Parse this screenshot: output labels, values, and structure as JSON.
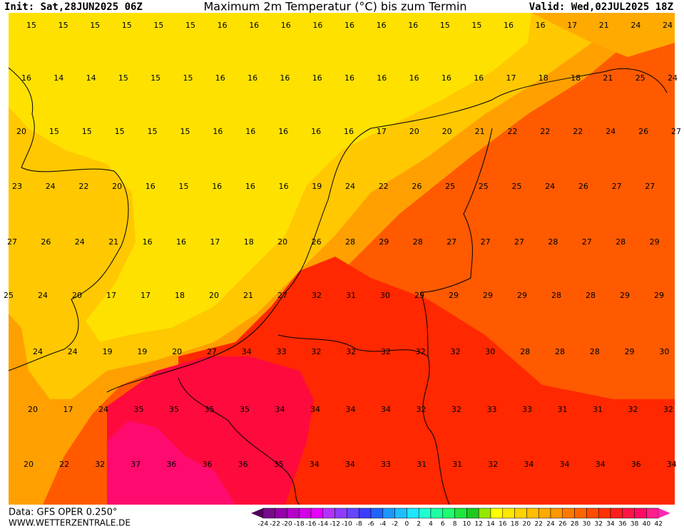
{
  "header": {
    "init": "Init: Sat,28JUN2025 06Z",
    "title": "Maximum 2m Temperatur (°C) bis zum Termin",
    "valid": "Valid: Wed,02JUL2025 18Z"
  },
  "map": {
    "rows": [
      [
        15,
        15,
        15,
        15,
        15,
        15,
        16,
        16,
        16,
        16,
        16,
        16,
        16,
        15,
        15,
        16,
        16,
        17,
        21,
        24,
        24
      ],
      [
        16,
        14,
        14,
        15,
        15,
        15,
        16,
        16,
        16,
        16,
        16,
        16,
        16,
        16,
        16,
        17,
        18,
        18,
        21,
        25,
        24
      ],
      [
        20,
        15,
        15,
        15,
        15,
        15,
        16,
        16,
        16,
        16,
        16,
        17,
        20,
        20,
        21,
        22,
        22,
        22,
        24,
        26,
        27
      ],
      [
        23,
        24,
        22,
        20,
        16,
        15,
        16,
        16,
        16,
        19,
        24,
        22,
        26,
        25,
        25,
        25,
        24,
        26,
        27,
        27
      ],
      [
        27,
        26,
        24,
        21,
        16,
        16,
        17,
        18,
        20,
        26,
        28,
        29,
        28,
        27,
        27,
        27,
        28,
        27,
        28,
        29
      ],
      [
        25,
        24,
        20,
        17,
        17,
        18,
        20,
        21,
        27,
        32,
        31,
        30,
        29,
        29,
        29,
        29,
        28,
        28,
        29,
        29
      ],
      [
        24,
        24,
        19,
        19,
        20,
        27,
        34,
        33,
        32,
        32,
        32,
        32,
        32,
        30,
        28,
        28,
        28,
        29,
        30
      ],
      [
        20,
        17,
        24,
        35,
        35,
        35,
        35,
        34,
        34,
        34,
        34,
        32,
        32,
        33,
        33,
        31,
        31,
        32,
        32
      ],
      [
        20,
        22,
        32,
        37,
        36,
        36,
        36,
        35,
        34,
        34,
        33,
        31,
        31,
        32,
        34,
        34,
        34,
        36,
        34
      ]
    ]
  },
  "footer": {
    "data": "Data: GFS OPER 0.250°",
    "site": "WWW.WETTERZENTRALE.DE"
  },
  "colorbar": {
    "ticks": [
      -24,
      -22,
      -20,
      -18,
      -16,
      -14,
      -12,
      -10,
      -8,
      -6,
      -4,
      -2,
      0,
      2,
      4,
      6,
      8,
      10,
      12,
      14,
      16,
      18,
      20,
      22,
      24,
      26,
      28,
      30,
      32,
      34,
      36,
      38,
      40,
      42
    ],
    "colors": [
      "#50005a",
      "#780a8c",
      "#9600aa",
      "#b400c8",
      "#d200e6",
      "#e600ff",
      "#b432ff",
      "#8c3cff",
      "#6446ff",
      "#3c3cff",
      "#1e64ff",
      "#1e96ff",
      "#1ebeff",
      "#1ee6ff",
      "#1effd2",
      "#1effa0",
      "#1eff6e",
      "#1ee63c",
      "#1ec81e",
      "#96e600",
      "#ffff00",
      "#ffe600",
      "#ffd200",
      "#ffbe00",
      "#ffaa00",
      "#ff9600",
      "#ff7800",
      "#ff6400",
      "#ff4b00",
      "#ff3200",
      "#ff1e1e",
      "#ff1446",
      "#ff0a64",
      "#ff1e8c",
      "#ff28b4"
    ]
  }
}
